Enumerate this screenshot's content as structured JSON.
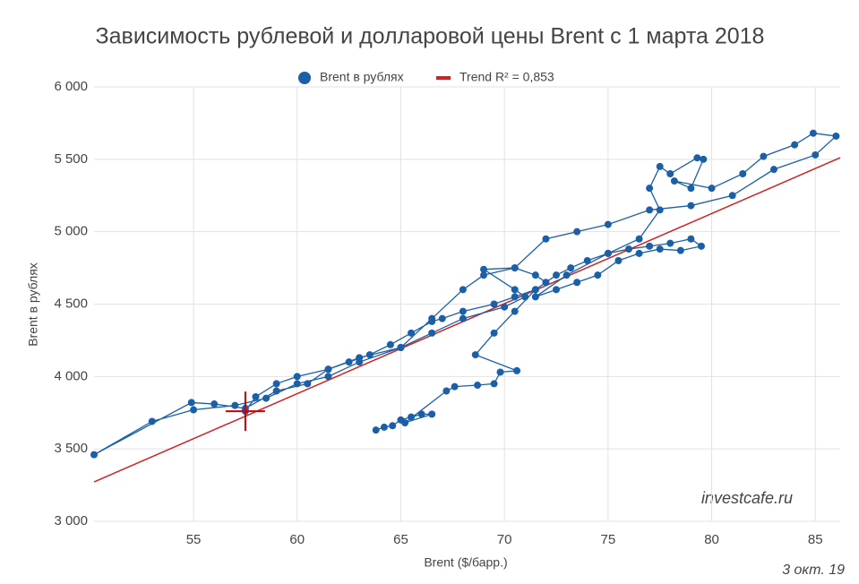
{
  "chart_data": {
    "type": "scatter",
    "title": "Зависимость рублевой и долларовой цены Brent с 1 марта 2018",
    "x_label": "Brent ($/барр.)",
    "y_label": "Brent в рублях",
    "annotations": [
      "investcafe.ru",
      "3 окт. 19"
    ],
    "xlim": [
      50.2,
      86.2
    ],
    "ylim": [
      3000,
      6000
    ],
    "xticks": [
      55,
      60,
      65,
      70,
      75,
      80,
      85
    ],
    "yticks": [
      {
        "value": 3000,
        "label": "3 000"
      },
      {
        "value": 3500,
        "label": "3 500"
      },
      {
        "value": 4000,
        "label": "4 000"
      },
      {
        "value": 4500,
        "label": "4 500"
      },
      {
        "value": 5000,
        "label": "5 000"
      },
      {
        "value": 5500,
        "label": "5 500"
      },
      {
        "value": 6000,
        "label": "6 000"
      }
    ],
    "grid": true,
    "legend": "top",
    "series": [
      {
        "name": "Brent в рублях",
        "color": "#1a5fa8",
        "x": [
          63.8,
          64.2,
          64.6,
          65.0,
          65.5,
          66.0,
          66.5,
          65.2,
          67.2,
          67.6,
          68.7,
          69.5,
          69.8,
          70.6,
          68.6,
          69.5,
          70.5,
          71.5,
          72.5,
          73.2,
          74.0,
          75.0,
          76.0,
          77.0,
          78.0,
          79.0,
          79.5,
          78.5,
          77.5,
          76.5,
          75.5,
          74.5,
          73.5,
          72.5,
          71.5,
          73.0,
          75.0,
          76.5,
          77.5,
          77.0,
          77.5,
          78.0,
          79.3,
          79.6,
          79.0,
          78.2,
          80.0,
          81.5,
          82.5,
          84.0,
          84.9,
          86.0,
          85.0,
          83.0,
          81.0,
          79.0,
          77.0,
          75.0,
          73.5,
          72.0,
          70.5,
          69.0,
          68.0,
          66.5,
          65.0,
          63.0,
          61.5,
          60.0,
          58.5,
          57.0,
          55.0,
          53.0,
          50.2,
          54.9,
          56.0,
          57.5,
          59.0,
          60.5,
          61.5,
          62.5,
          63.5,
          64.5,
          65.5,
          66.5,
          67.0,
          68.0,
          69.5,
          70.5,
          71.5,
          72.0,
          71.5,
          70.5,
          69.0,
          70.5,
          71.0,
          70.0,
          68.0,
          66.5,
          65.0,
          63.0,
          61.5,
          60.0,
          59.0,
          58.0,
          57.5
        ],
        "values": [
          3630,
          3650,
          3660,
          3700,
          3720,
          3740,
          3740,
          3680,
          3900,
          3930,
          3940,
          3950,
          4030,
          4040,
          4150,
          4300,
          4450,
          4600,
          4700,
          4750,
          4800,
          4850,
          4880,
          4900,
          4920,
          4950,
          4900,
          4870,
          4880,
          4850,
          4800,
          4700,
          4650,
          4600,
          4550,
          4700,
          4850,
          4950,
          5150,
          5300,
          5450,
          5400,
          5510,
          5500,
          5300,
          5350,
          5300,
          5400,
          5520,
          5600,
          5680,
          5660,
          5530,
          5430,
          5250,
          5180,
          5150,
          5050,
          5000,
          4950,
          4750,
          4700,
          4600,
          4400,
          4200,
          4100,
          4000,
          3950,
          3850,
          3800,
          3770,
          3690,
          3460,
          3820,
          3810,
          3780,
          3900,
          3950,
          4050,
          4100,
          4150,
          4220,
          4300,
          4380,
          4400,
          4450,
          4500,
          4550,
          4600,
          4650,
          4700,
          4750,
          4740,
          4600,
          4550,
          4480,
          4400,
          4300,
          4200,
          4130,
          4050,
          4000,
          3950,
          3860,
          3760
        ]
      },
      {
        "name": "Trend R² = 0,853",
        "color": "#d42020",
        "x": [
          50.2,
          86.2
        ],
        "values": [
          3272,
          5511
        ]
      }
    ]
  }
}
